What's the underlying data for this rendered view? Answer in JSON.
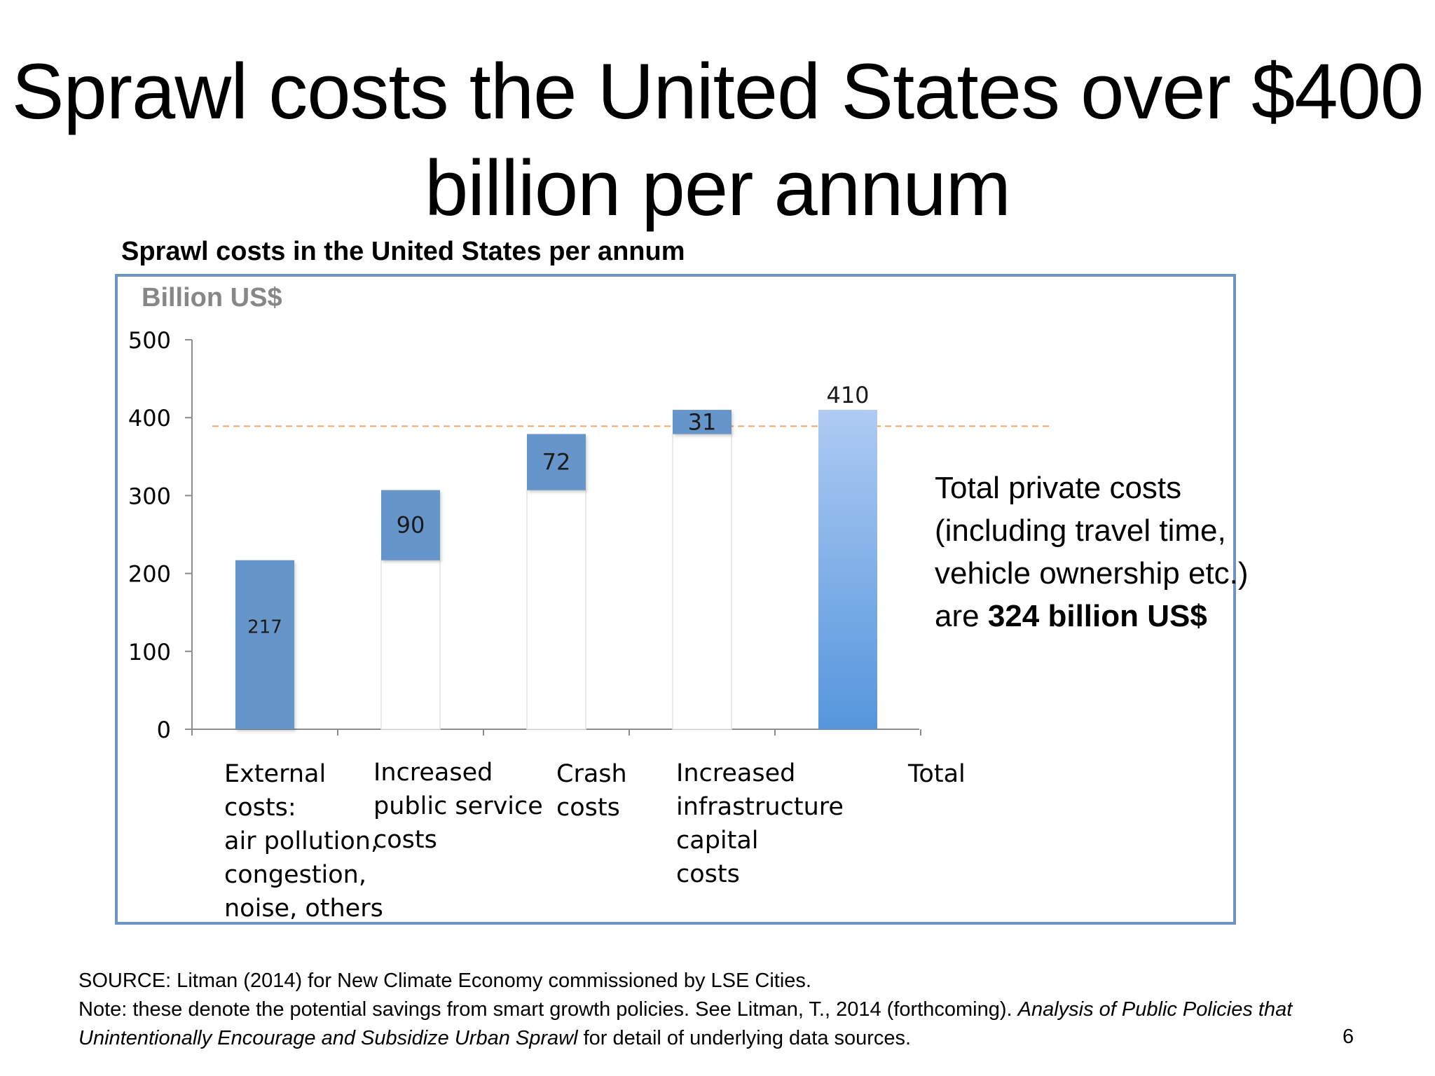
{
  "slide": {
    "title_line1": "Sprawl costs the United States over $400",
    "title_line2": "billion per annum",
    "chart_heading": "Sprawl costs in the United States per annum",
    "side_note": {
      "line1": "Total private costs",
      "line2": "(including travel time,",
      "line3": "vehicle ownership etc.)",
      "line4_prefix": "are ",
      "line4_bold": "324 billion US$"
    },
    "footer": {
      "source": "SOURCE: Litman (2014) for New Climate Economy commissioned by LSE Cities.",
      "note_plain": "Note: these denote the potential savings from smart growth policies. See Litman, T., 2014 (forthcoming). ",
      "note_italic_1": "Analysis of Public Policies that",
      "note_italic_2": "Unintentionally Encourage and Subsidize Urban Sprawl",
      "note_tail": " for detail of underlying data sources."
    },
    "page_number": "6"
  },
  "chart_data": {
    "type": "bar",
    "subtype": "waterfall",
    "title": "Sprawl costs in the United States per annum",
    "ylabel": "Billion US$",
    "ylim": [
      0,
      500
    ],
    "yticks": [
      "0",
      "100",
      "200",
      "300",
      "400",
      "500"
    ],
    "categories": [
      [
        "External",
        "costs:",
        "air pollution,",
        "congestion,",
        "noise, others"
      ],
      [
        "Increased",
        "public service",
        "costs"
      ],
      [
        "Crash",
        "costs"
      ],
      [
        "Increased",
        "infrastructure",
        "capital",
        "costs"
      ],
      [
        "Total"
      ]
    ],
    "values": [
      217,
      90,
      72,
      31,
      410
    ],
    "labels": [
      "217",
      "90",
      "72",
      "31",
      "410"
    ],
    "base": [
      0,
      217,
      307,
      379,
      0
    ],
    "reference_line": 389,
    "colors": {
      "increment": "#6595c9",
      "total_top": "#aecbf3",
      "total_bottom": "#5596dc",
      "reference_line": "#f0a868",
      "axis": "#8c8c8c",
      "ylabel": "#878787",
      "frame": "#6b95c6"
    },
    "grid": false,
    "legend": "none"
  }
}
